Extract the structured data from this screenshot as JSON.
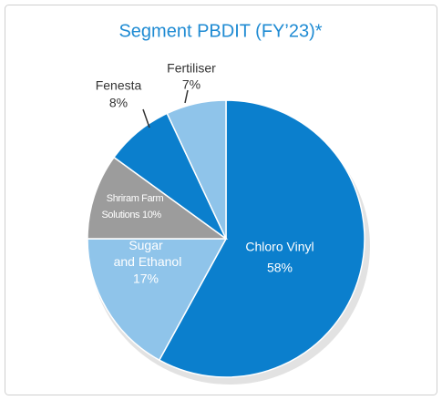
{
  "chart_data": {
    "type": "pie",
    "title": "Segment PBDIT (FY’23)*",
    "categories": [
      "Chloro Vinyl",
      "Sugar and Ethanol",
      "Shriram Farm Solutions",
      "Fenesta",
      "Fertiliser"
    ],
    "values": [
      58,
      17,
      10,
      8,
      7
    ],
    "value_labels": [
      "58%",
      "17%",
      "10%",
      "8%",
      "7%"
    ],
    "colors": [
      "#0b7fcd",
      "#8fc4ea",
      "#9c9c9c",
      "#0b7fcd",
      "#8fc4ea"
    ]
  }
}
